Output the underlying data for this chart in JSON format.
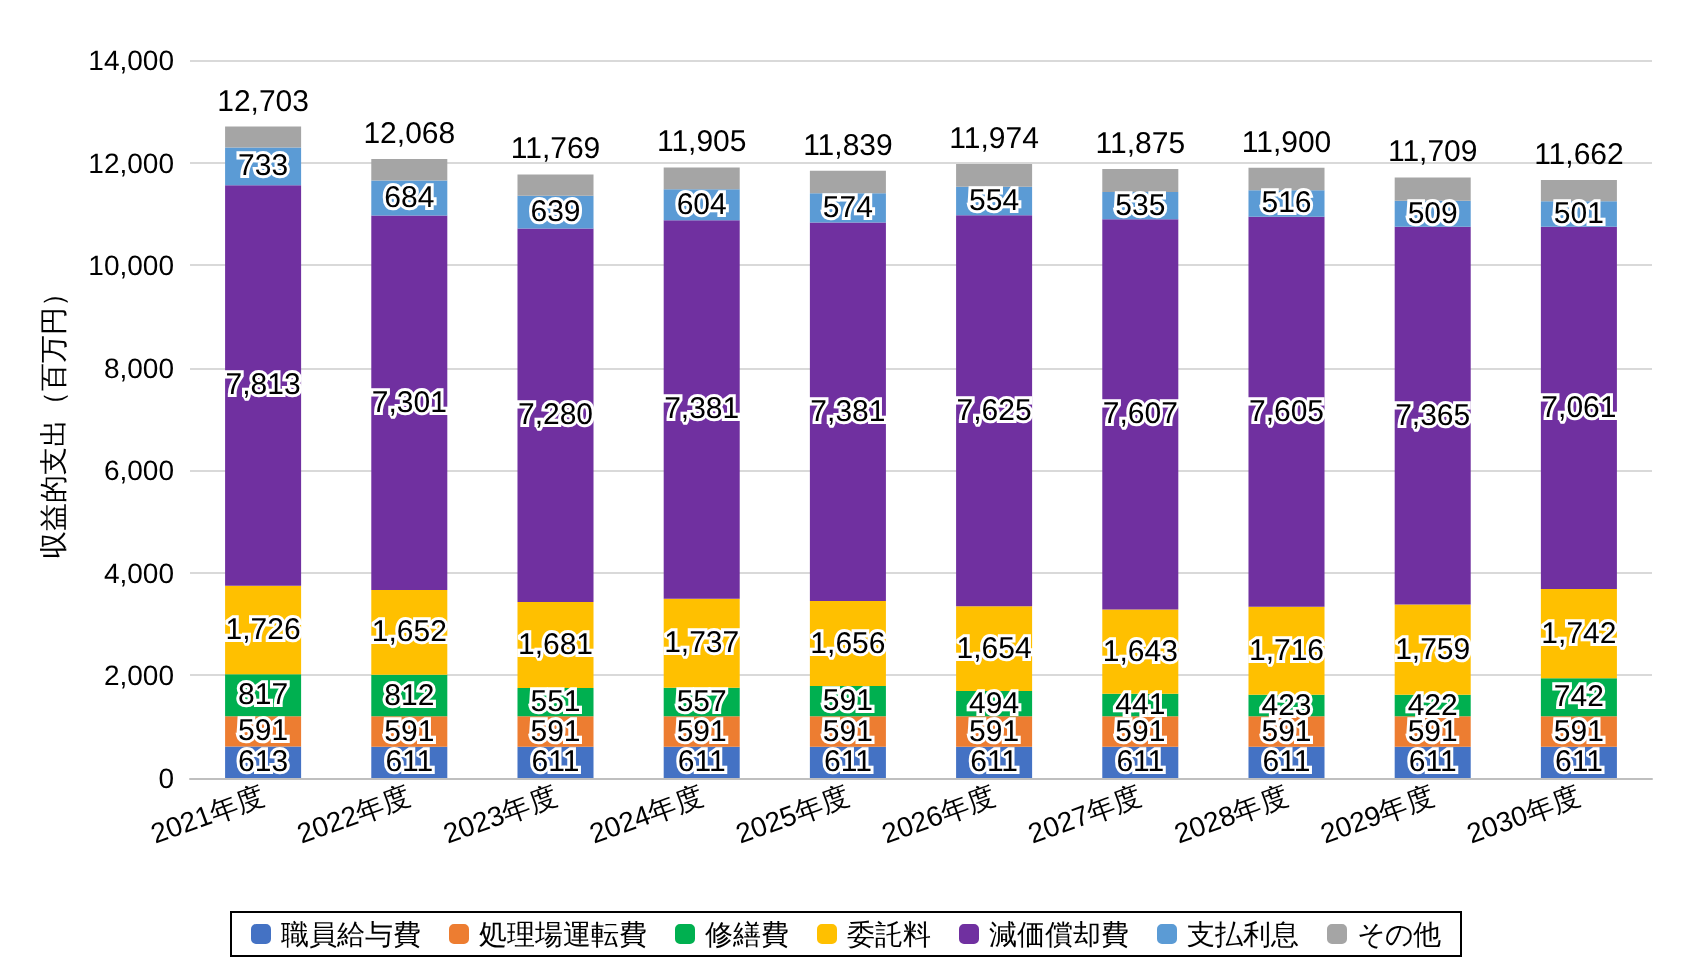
{
  "chart_data": {
    "type": "bar",
    "stacked": true,
    "ylabel": "収益的支出（百万円）",
    "categories": [
      "2021年度",
      "2022年度",
      "2023年度",
      "2024年度",
      "2025年度",
      "2026年度",
      "2027年度",
      "2028年度",
      "2029年度",
      "2030年度"
    ],
    "series": [
      {
        "name": "職員給与費",
        "color": "#4472c4",
        "values": [
          613,
          611,
          611,
          611,
          611,
          611,
          611,
          611,
          611,
          611
        ],
        "value_labels": [
          "613",
          "611",
          "611",
          "611",
          "611",
          "611",
          "611",
          "611",
          "611",
          "611"
        ]
      },
      {
        "name": "処理場運転費",
        "color": "#ed7d31",
        "values": [
          591,
          591,
          591,
          591,
          591,
          591,
          591,
          591,
          591,
          591
        ],
        "value_labels": [
          "591",
          "591",
          "591",
          "591",
          "591",
          "591",
          "591",
          "591",
          "591",
          "591"
        ]
      },
      {
        "name": "修繕費",
        "color": "#00b050",
        "values": [
          817,
          812,
          551,
          557,
          591,
          494,
          441,
          423,
          422,
          742
        ],
        "value_labels": [
          "817",
          "812",
          "551",
          "557",
          "591",
          "494",
          "441",
          "423",
          "422",
          "742"
        ]
      },
      {
        "name": "委託料",
        "color": "#ffc000",
        "values": [
          1726,
          1652,
          1681,
          1737,
          1656,
          1654,
          1643,
          1716,
          1759,
          1742
        ],
        "value_labels": [
          "1,726",
          "1,652",
          "1,681",
          "1,737",
          "1,656",
          "1,654",
          "1,643",
          "1,716",
          "1,759",
          "1,742"
        ]
      },
      {
        "name": "減価償却費",
        "color": "#7030a0",
        "values": [
          7813,
          7301,
          7280,
          7381,
          7381,
          7625,
          7607,
          7605,
          7365,
          7061
        ],
        "value_labels": [
          "7,813",
          "7,301",
          "7,280",
          "7,381",
          "7,381",
          "7,625",
          "7,607",
          "7,605",
          "7,365",
          "7,061"
        ]
      },
      {
        "name": "支払利息",
        "color": "#5b9bd5",
        "values": [
          733,
          684,
          639,
          604,
          574,
          554,
          535,
          516,
          509,
          501
        ],
        "value_labels": [
          "733",
          "684",
          "639",
          "604",
          "574",
          "554",
          "535",
          "516",
          "509",
          "501"
        ]
      },
      {
        "name": "その他",
        "color": "#a5a5a5",
        "values": [
          410,
          417,
          416,
          424,
          435,
          445,
          447,
          438,
          452,
          414
        ]
      }
    ],
    "totals": [
      "12,703",
      "12,068",
      "11,769",
      "11,905",
      "11,839",
      "11,974",
      "11,875",
      "11,900",
      "11,709",
      "11,662"
    ],
    "ylim": [
      0,
      14000
    ],
    "yticks": [
      {
        "value": 0,
        "label": "0"
      },
      {
        "value": 2000,
        "label": "2,000"
      },
      {
        "value": 4000,
        "label": "4,000"
      },
      {
        "value": 6000,
        "label": "6,000"
      },
      {
        "value": 8000,
        "label": "8,000"
      },
      {
        "value": 10000,
        "label": "10,000"
      },
      {
        "value": 12000,
        "label": "12,000"
      },
      {
        "value": 14000,
        "label": "14,000"
      }
    ],
    "grid": "y",
    "legend": "bottom"
  }
}
